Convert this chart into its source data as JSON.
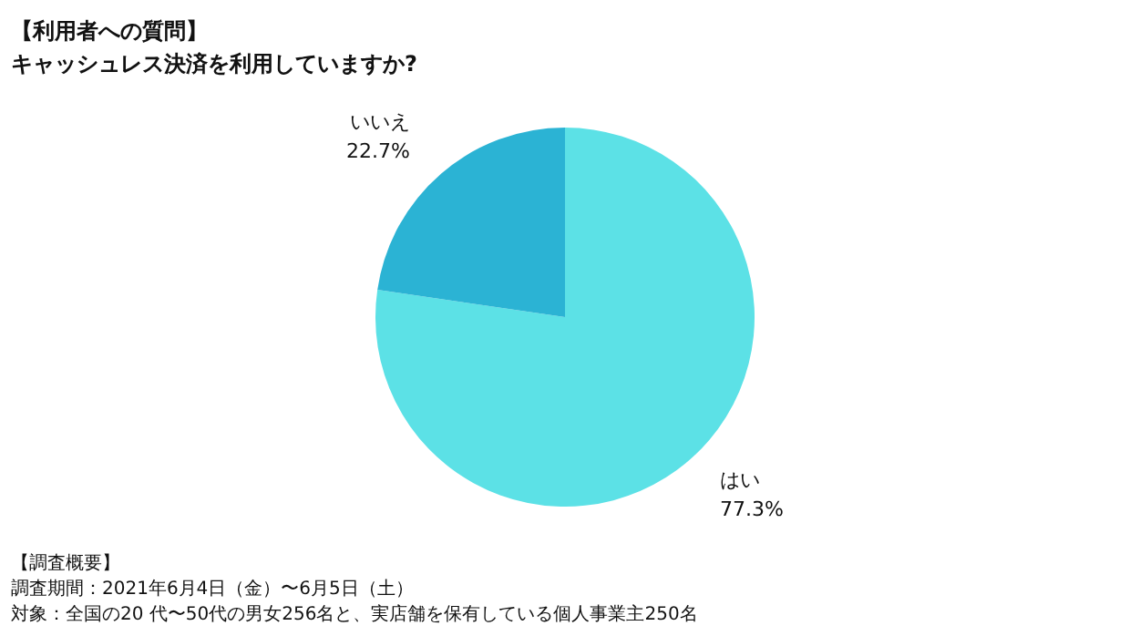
{
  "chart_data": {
    "type": "pie",
    "title": "【利用者への質問】",
    "subtitle": "キャッシュレス決済を利用していますか?",
    "categories": [
      "はい",
      "いいえ"
    ],
    "values": [
      77.3,
      22.7
    ],
    "colors": [
      "#5ce1e6",
      "#2bb3d4"
    ],
    "value_labels": [
      "77.3%",
      "22.7%"
    ],
    "annotations": [
      "【調査概要】",
      "調査期間：2021年6月4日（金）〜6月5日（土）",
      "対象：全国の20 代〜50代の男女256名と、実店舗を保有している個人事業主250名"
    ],
    "legend": false
  }
}
